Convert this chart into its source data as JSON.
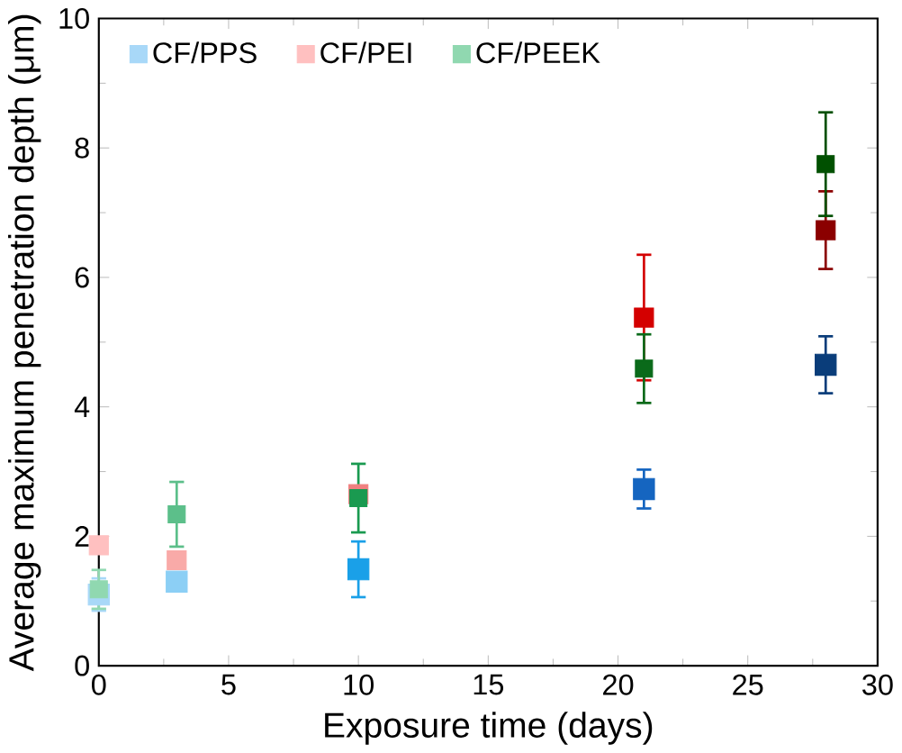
{
  "chart_data": {
    "type": "scatter",
    "xlabel": "Exposure time (days)",
    "ylabel": "Average maximum penetration depth (μm)",
    "xlim": [
      0,
      30
    ],
    "ylim": [
      0,
      10
    ],
    "xticks": [
      0,
      5,
      10,
      15,
      20,
      25,
      30
    ],
    "yticks": [
      0,
      2,
      4,
      6,
      8,
      10
    ],
    "marker": "square",
    "legend": "top left",
    "series": [
      {
        "name": "CF/PPS",
        "color": "#a8d8f8",
        "x": [
          0,
          3,
          10,
          21,
          28
        ],
        "values": [
          1.1,
          1.3,
          1.49,
          2.73,
          4.65
        ],
        "errors": [
          0.25,
          null,
          0.43,
          0.3,
          0.44
        ],
        "colors": [
          "#a8d8f8",
          "#8ccff5",
          "#1aa0e8",
          "#1565c0",
          "#0a3d7a"
        ]
      },
      {
        "name": "CF/PEI",
        "color": "#ffc0c0",
        "x": [
          0,
          3,
          10,
          21,
          28
        ],
        "values": [
          1.86,
          1.63,
          2.65,
          5.38,
          6.73
        ],
        "errors": [
          null,
          null,
          null,
          0.97,
          0.6
        ],
        "colors": [
          "#ffc0c0",
          "#f9aaa8",
          "#f08080",
          "#d40000",
          "#8b0000"
        ]
      },
      {
        "name": "CF/PEEK",
        "color": "#90d8b0",
        "x": [
          0,
          3,
          10,
          21,
          28
        ],
        "values": [
          1.18,
          2.34,
          2.59,
          4.59,
          7.75
        ],
        "errors": [
          0.3,
          0.5,
          0.53,
          0.53,
          0.8
        ],
        "colors": [
          "#90d8b0",
          "#5cbf8a",
          "#1a9a50",
          "#0a6a1a",
          "#005000"
        ]
      }
    ]
  }
}
